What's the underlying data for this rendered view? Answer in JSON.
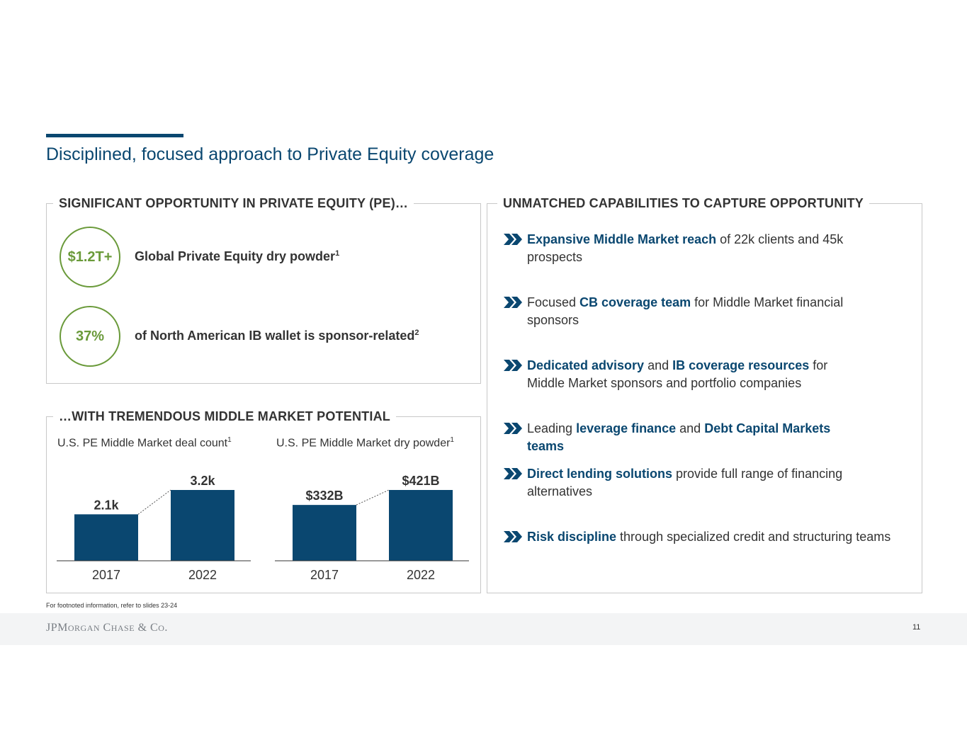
{
  "title": "Disciplined, focused approach to Private Equity coverage",
  "left_top": {
    "heading": "SIGNIFICANT OPPORTUNITY IN PRIVATE EQUITY (PE)…",
    "stats": [
      {
        "value": "$1.2T+",
        "text": "Global Private Equity dry powder",
        "footnote": "1"
      },
      {
        "value": "37%",
        "text": "of North American IB wallet is sponsor-related",
        "footnote": "2"
      }
    ]
  },
  "left_bottom": {
    "heading": "…WITH TREMENDOUS MIDDLE MARKET POTENTIAL"
  },
  "chart_data": [
    {
      "type": "bar",
      "title": "U.S. PE Middle Market deal count",
      "title_footnote": "1",
      "categories": [
        "2017",
        "2022"
      ],
      "values": [
        2.1,
        3.2
      ],
      "value_labels": [
        "2.1k",
        "3.2k"
      ],
      "ylim": [
        0,
        3.2
      ],
      "grid": false,
      "color": "#0a4770"
    },
    {
      "type": "bar",
      "title": "U.S. PE Middle Market dry powder",
      "title_footnote": "1",
      "categories": [
        "2017",
        "2022"
      ],
      "values": [
        332,
        421
      ],
      "value_labels": [
        "$332B",
        "$421B"
      ],
      "ylim": [
        0,
        421
      ],
      "grid": false,
      "color": "#0a4770"
    }
  ],
  "right": {
    "heading": "UNMATCHED CAPABILITIES TO CAPTURE OPPORTUNITY",
    "bullets": [
      [
        {
          "t": "Expansive Middle Market reach",
          "b": true
        },
        {
          "t": " of 22k clients and 45k prospects",
          "b": false
        }
      ],
      [
        {
          "t": "Focused ",
          "b": false
        },
        {
          "t": "CB coverage team",
          "b": true
        },
        {
          "t": " for Middle Market financial sponsors",
          "b": false
        }
      ],
      [
        {
          "t": "Dedicated advisory",
          "b": true
        },
        {
          "t": " and ",
          "b": false
        },
        {
          "t": "IB coverage resources",
          "b": true
        },
        {
          "t": " for Middle Market sponsors and portfolio companies",
          "b": false
        }
      ],
      [
        {
          "t": "Leading ",
          "b": false
        },
        {
          "t": "leverage finance",
          "b": true
        },
        {
          "t": " and ",
          "b": false
        },
        {
          "t": "Debt Capital Markets teams",
          "b": true
        }
      ],
      [
        {
          "t": "Direct lending solutions",
          "b": true
        },
        {
          "t": " provide full range of financing alternatives",
          "b": false
        }
      ],
      [
        {
          "t": "Risk discipline",
          "b": true
        },
        {
          "t": " through specialized credit and structuring teams",
          "b": false
        }
      ]
    ],
    "bullet_icon": "double-chevron-right-icon"
  },
  "footer": {
    "footnote": "For footnoted information, refer to slides 23-24",
    "logo": "JPMorgan Chase & Co.",
    "page_number": "11"
  },
  "colors": {
    "brand_blue": "#0a4770",
    "accent_green": "#6a9a3a",
    "border_gray": "#c8c8c8"
  }
}
